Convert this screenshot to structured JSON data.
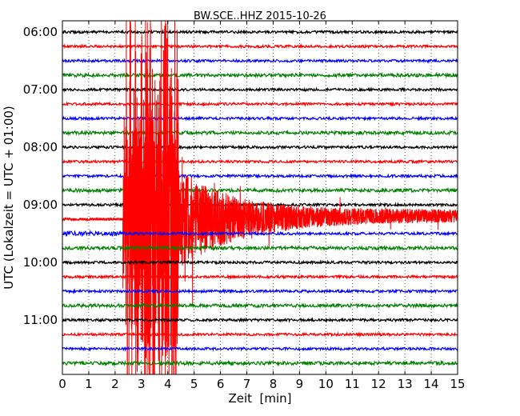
{
  "chart_data": {
    "type": "line",
    "title": "BW.SCE..HHZ 2015-10-26",
    "xlabel": "Zeit  [min]",
    "ylabel": "UTC (Lokalzeit = UTC + 01:00)",
    "xlim": [
      0,
      15
    ],
    "x_ticks": [
      "0",
      "1",
      "2",
      "3",
      "4",
      "5",
      "6",
      "7",
      "8",
      "9",
      "10",
      "11",
      "12",
      "13",
      "14",
      "15"
    ],
    "y_tick_labels": [
      "06:00",
      "07:00",
      "08:00",
      "09:00",
      "10:00",
      "11:00"
    ],
    "grid": "vertical dotted",
    "trace_interval_min": 15,
    "color_cycle": [
      "#000000",
      "#ff0000",
      "#0000ff",
      "#008000"
    ],
    "traces": [
      "06:00",
      "06:15",
      "06:30",
      "06:45",
      "07:00",
      "07:15",
      "07:30",
      "07:45",
      "08:00",
      "08:15",
      "08:30",
      "08:45",
      "09:00",
      "09:15",
      "09:30",
      "09:45",
      "10:00",
      "10:15",
      "10:30",
      "10:45",
      "11:00",
      "11:15",
      "11:30",
      "11:45"
    ],
    "event": {
      "trace": "09:15",
      "onset_min": 2.3,
      "strong_until_min": 4.4
    }
  }
}
